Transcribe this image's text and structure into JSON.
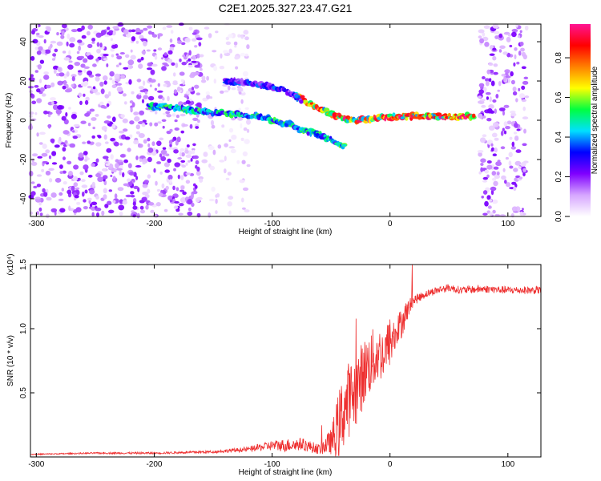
{
  "figure": {
    "title": "C2E1.2025.327.23.47.G21"
  },
  "chart_data": [
    {
      "type": "heatmap",
      "xlabel": "Height of straight line (km)",
      "ylabel": "Frequency (Hz)",
      "xlim": [
        -305,
        128
      ],
      "ylim": [
        -49,
        49
      ],
      "x_ticks": [
        -300,
        -200,
        -100,
        0,
        100
      ],
      "x_tick_labels": [
        "-300",
        "-200",
        "-100",
        "0",
        "100"
      ],
      "y_ticks": [
        -40,
        -20,
        0,
        20,
        40
      ],
      "y_tick_labels": [
        "-40",
        "-20",
        "0",
        "20",
        "40"
      ],
      "colorbar": {
        "label": "Normalized spectral amplitude",
        "range": [
          0,
          0.97
        ],
        "ticks": [
          0,
          0.2,
          0.4,
          0.6,
          0.8
        ],
        "tick_labels": [
          "0.0",
          "0.2",
          "0.4",
          "0.6",
          "0.8"
        ],
        "colors": [
          "#ffffff",
          "#d6a6ff",
          "#7f00ff",
          "#0000ff",
          "#00e0ff",
          "#00ff40",
          "#ffff00",
          "#ff8000",
          "#ff0000",
          "#ff1493"
        ]
      },
      "features": [
        {
          "name": "diffuse noise band",
          "x_range": [
            -305,
            -160
          ],
          "freq_range": [
            -49,
            49
          ],
          "amplitude": 0.15
        },
        {
          "name": "residual noise band",
          "x_range": [
            -160,
            -120
          ],
          "freq_range": [
            -49,
            49
          ],
          "amplitude": 0.07
        },
        {
          "name": "noise band",
          "x_range": [
            76,
            116
          ],
          "freq_range": [
            -49,
            49
          ],
          "amplitude": 0.15
        },
        {
          "name": "signal trace",
          "points": [
            [
              -205,
              7
            ],
            [
              -185,
              7
            ],
            [
              -170,
              5
            ],
            [
              -150,
              4
            ],
            [
              -130,
              3
            ],
            [
              -110,
              2
            ],
            [
              -95,
              -1
            ],
            [
              -85,
              -2
            ],
            [
              -75,
              -5
            ],
            [
              -60,
              -7
            ],
            [
              -45,
              -12
            ],
            [
              -38,
              -14
            ]
          ],
          "amplitude": 0.45
        },
        {
          "name": "signal trace",
          "points": [
            [
              -80,
              13
            ],
            [
              -70,
              9
            ],
            [
              -60,
              6
            ],
            [
              -50,
              3
            ],
            [
              -40,
              1
            ],
            [
              -30,
              0
            ],
            [
              -10,
              1
            ],
            [
              10,
              2
            ],
            [
              40,
              2
            ],
            [
              72,
              2
            ]
          ],
          "amplitude": 0.75
        },
        {
          "name": "signal trace",
          "points": [
            [
              -140,
              20
            ],
            [
              -120,
              19
            ],
            [
              -100,
              17
            ],
            [
              -85,
              14
            ],
            [
              -75,
              10
            ]
          ],
          "amplitude": 0.3
        }
      ]
    },
    {
      "type": "line",
      "xlabel": "Height of straight line (km)",
      "ylabel": "SNR (10 * v/v)",
      "scale_label": "(x10⁴)",
      "xlim": [
        -305,
        128
      ],
      "ylim": [
        0,
        1.5
      ],
      "x_ticks": [
        -300,
        -200,
        -100,
        0,
        100
      ],
      "x_tick_labels": [
        "-300",
        "-200",
        "-100",
        "0",
        "100"
      ],
      "y_ticks": [
        0.5,
        1.0,
        1.5
      ],
      "y_tick_labels": [
        "0.5",
        "1.0",
        "1.5"
      ],
      "series": [
        {
          "color": "#ee3030",
          "x": [
            -305,
            -250,
            -200,
            -150,
            -120,
            -100,
            -90,
            -75,
            -60,
            -50,
            -45,
            -40,
            -35,
            -30,
            -25,
            -20,
            -15,
            -10,
            -5,
            0,
            5,
            10,
            15,
            20,
            30,
            40,
            50,
            60,
            80,
            100,
            128
          ],
          "y": [
            0.02,
            0.03,
            0.03,
            0.04,
            0.06,
            0.09,
            0.09,
            0.1,
            0.06,
            0.12,
            0.2,
            0.35,
            0.45,
            0.5,
            0.6,
            0.7,
            0.75,
            0.8,
            0.8,
            0.9,
            0.95,
            1.05,
            1.15,
            1.22,
            1.27,
            1.3,
            1.32,
            1.3,
            1.31,
            1.3,
            1.3
          ],
          "noise": [
            0.005,
            0.006,
            0.008,
            0.01,
            0.02,
            0.04,
            0.05,
            0.05,
            0.04,
            0.1,
            0.25,
            0.3,
            0.3,
            0.28,
            0.28,
            0.25,
            0.25,
            0.22,
            0.2,
            0.2,
            0.15,
            0.12,
            0.08,
            0.04,
            0.03,
            0.03,
            0.03,
            0.03,
            0.03,
            0.03,
            0.03
          ]
        }
      ]
    }
  ]
}
